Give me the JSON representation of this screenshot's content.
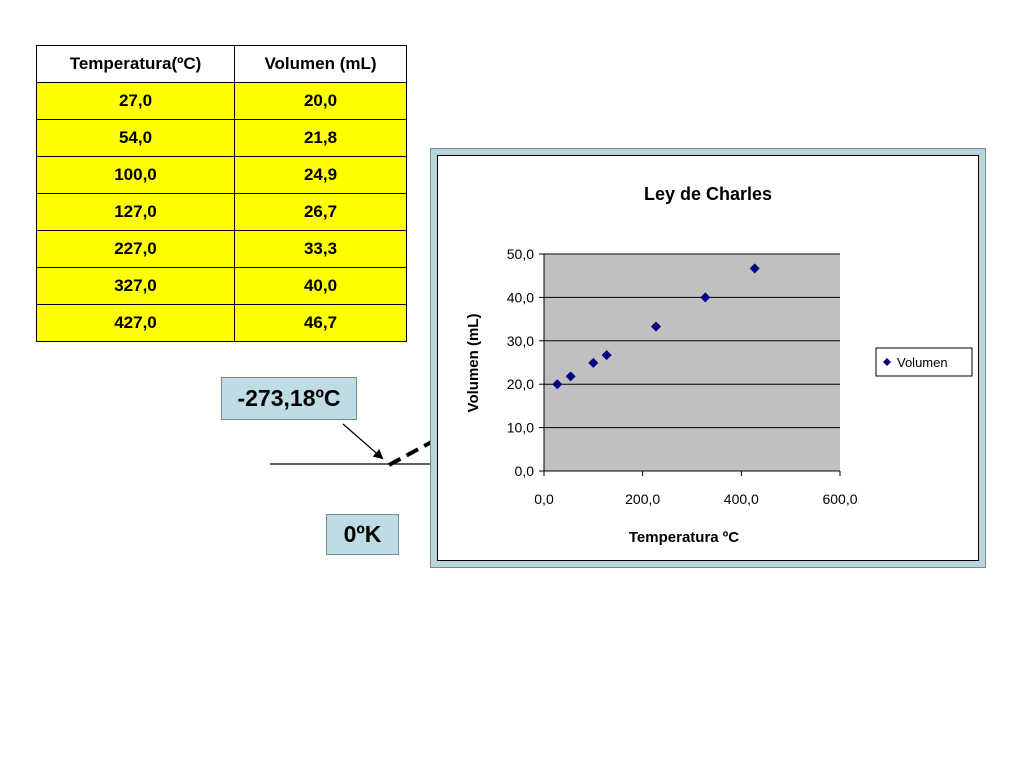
{
  "table": {
    "headers": [
      "Temperatura(ºC)",
      "Volumen (mL)"
    ],
    "rows": [
      [
        "27,0",
        "20,0"
      ],
      [
        "54,0",
        "21,8"
      ],
      [
        "100,0",
        "24,9"
      ],
      [
        "127,0",
        "26,7"
      ],
      [
        "227,0",
        "33,3"
      ],
      [
        "327,0",
        "40,0"
      ],
      [
        "427,0",
        "46,7"
      ]
    ]
  },
  "callouts": {
    "absolute_zero_celsius": "-273,18ºC",
    "absolute_zero_kelvin": "0ºK"
  },
  "chart_data": {
    "type": "scatter",
    "title": "Ley de Charles",
    "xlabel": "Temperatura ºC",
    "ylabel": "Volumen (mL)",
    "xlim": [
      0,
      600
    ],
    "ylim": [
      0,
      50
    ],
    "x_ticks": [
      "0,0",
      "200,0",
      "400,0",
      "600,0"
    ],
    "y_ticks": [
      "0,0",
      "10,0",
      "20,0",
      "30,0",
      "40,0",
      "50,0"
    ],
    "grid": true,
    "legend_position": "right",
    "plot_background": "#c0c0c0",
    "series": [
      {
        "name": "Volumen",
        "color": "#000080",
        "marker": "diamond",
        "x": [
          27,
          54,
          100,
          127,
          227,
          327,
          427
        ],
        "y": [
          20.0,
          21.8,
          24.9,
          26.7,
          33.3,
          40.0,
          46.7
        ]
      }
    ]
  },
  "colors": {
    "table_fill": "#ffff00",
    "callout_fill": "#bfdbe3",
    "chart_frame": "#b9d3da"
  }
}
